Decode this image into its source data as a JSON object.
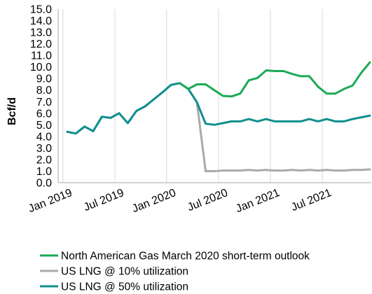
{
  "chart_data": {
    "type": "line",
    "title": "",
    "ylabel": "Bcf/d",
    "xlabel": "",
    "ylim": [
      0,
      15
    ],
    "yticks": [
      "0.0",
      "1.0",
      "2.0",
      "3.0",
      "4.0",
      "5.0",
      "6.0",
      "7.0",
      "8.0",
      "9.0",
      "10.0",
      "11.0",
      "12.0",
      "13.0",
      "14.0",
      "15.0"
    ],
    "xtick_labels": [
      "Jan 2019",
      "Jul 2019",
      "Jan 2020",
      "Jul 2020",
      "Jan 2021",
      "Jul 2021"
    ],
    "grid": "vertical",
    "legend_position": "bottom",
    "x": [
      "2019-01",
      "2019-02",
      "2019-03",
      "2019-04",
      "2019-05",
      "2019-06",
      "2019-07",
      "2019-08",
      "2019-09",
      "2019-10",
      "2019-11",
      "2019-12",
      "2020-01",
      "2020-02",
      "2020-03",
      "2020-04",
      "2020-05",
      "2020-06",
      "2020-07",
      "2020-08",
      "2020-09",
      "2020-10",
      "2020-11",
      "2020-12",
      "2021-01",
      "2021-02",
      "2021-03",
      "2021-04",
      "2021-05",
      "2021-06",
      "2021-07",
      "2021-08",
      "2021-09",
      "2021-10",
      "2021-11",
      "2021-12"
    ],
    "series": [
      {
        "name": "North American Gas March 2020 short-term outlook",
        "color": "#1aaa55",
        "values": [
          null,
          null,
          null,
          null,
          null,
          null,
          null,
          null,
          null,
          null,
          null,
          null,
          null,
          8.6,
          8.1,
          8.5,
          8.5,
          8.0,
          7.5,
          7.45,
          7.7,
          8.85,
          9.05,
          9.7,
          9.65,
          9.65,
          9.4,
          9.2,
          9.2,
          8.3,
          7.7,
          7.7,
          8.1,
          8.4,
          9.5,
          10.4
        ]
      },
      {
        "name": "US LNG @ 10% utilization",
        "color": "#aaaaaa",
        "values": [
          4.4,
          4.25,
          4.85,
          4.45,
          5.7,
          5.6,
          6.0,
          5.15,
          6.2,
          6.6,
          7.2,
          7.8,
          8.45,
          8.6,
          8.1,
          6.95,
          1.0,
          1.0,
          1.05,
          1.05,
          1.05,
          1.1,
          1.05,
          1.1,
          1.05,
          1.05,
          1.1,
          1.05,
          1.1,
          1.05,
          1.1,
          1.05,
          1.05,
          1.1,
          1.1,
          1.15
        ]
      },
      {
        "name": "US LNG @ 50% utilization",
        "color": "#0f8f8f",
        "values": [
          4.4,
          4.25,
          4.85,
          4.45,
          5.7,
          5.6,
          6.0,
          5.15,
          6.2,
          6.6,
          7.2,
          7.8,
          8.45,
          8.6,
          8.1,
          6.95,
          5.1,
          5.0,
          5.15,
          5.3,
          5.3,
          5.5,
          5.3,
          5.5,
          5.3,
          5.3,
          5.3,
          5.3,
          5.5,
          5.3,
          5.5,
          5.3,
          5.3,
          5.5,
          5.65,
          5.8
        ]
      }
    ]
  }
}
